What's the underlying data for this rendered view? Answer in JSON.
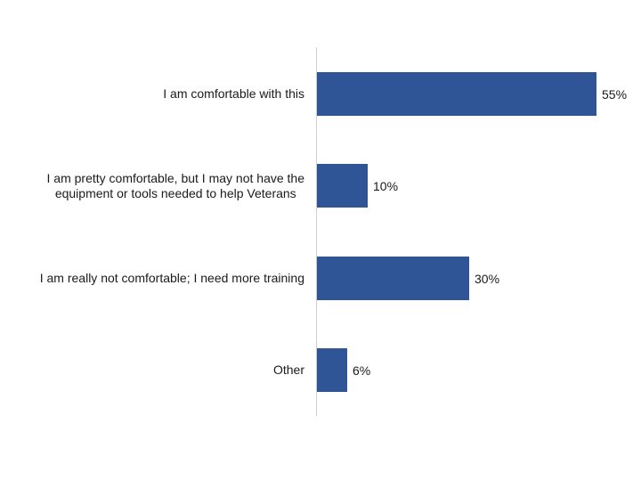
{
  "chart_data": {
    "type": "bar",
    "orientation": "horizontal",
    "title": "",
    "xlabel": "",
    "ylabel": "",
    "categories": [
      "I am comfortable with this",
      "I am pretty comfortable, but I may not have the equipment or tools needed to help Veterans",
      "I am really not comfortable; I need more training",
      "Other"
    ],
    "values": [
      55,
      10,
      30,
      6
    ],
    "value_labels": [
      "55%",
      "10%",
      "30%",
      "6%"
    ],
    "xlim": [
      0,
      60
    ],
    "grid": false,
    "legend": null,
    "bar_color": "#2f5597"
  },
  "rows": [
    {
      "label": "I am comfortable with this",
      "value": 55,
      "value_label": "55%"
    },
    {
      "label": "I am pretty comfortable, but I may not have the equipment or tools needed to help Veterans",
      "label_lines": [
        "I am pretty comfortable, but I may not have the",
        "equipment or tools needed to help Veterans"
      ],
      "value": 10,
      "value_label": "10%"
    },
    {
      "label": "I am really not comfortable; I need more training",
      "value": 30,
      "value_label": "30%"
    },
    {
      "label": "Other",
      "value": 6,
      "value_label": "6%"
    }
  ]
}
